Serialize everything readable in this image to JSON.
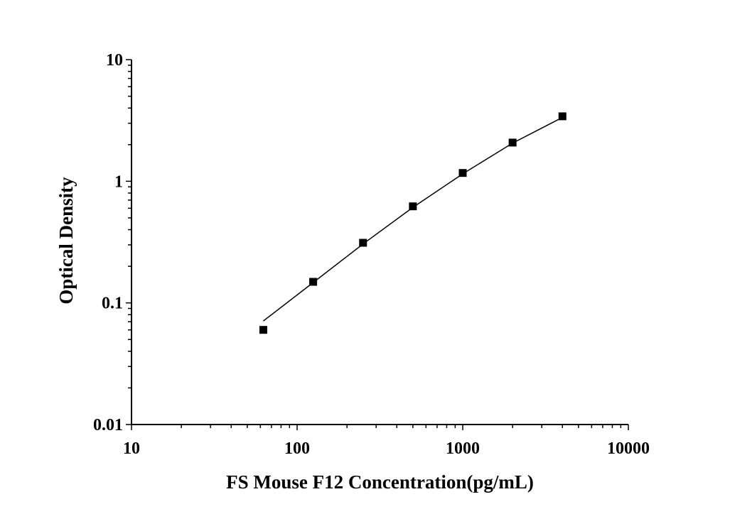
{
  "chart_data": {
    "type": "scatter",
    "title": "",
    "xlabel": "FS Mouse F12 Concentration(pg/mL)",
    "ylabel": "Optical Density",
    "xscale": "log",
    "yscale": "log",
    "xlim": [
      10,
      10000
    ],
    "ylim": [
      0.01,
      10
    ],
    "x_ticks": [
      "10",
      "100",
      "1000",
      "10000"
    ],
    "y_ticks": [
      "0.01",
      "0.1",
      "1",
      "10"
    ],
    "grid": false,
    "legend": "none",
    "series": [
      {
        "marker": "square",
        "x": [
          62.5,
          125,
          250,
          500,
          1000,
          2000,
          4000
        ],
        "y": [
          0.06,
          0.149,
          0.312,
          0.622,
          1.17,
          2.08,
          3.42
        ]
      }
    ],
    "fit_curve": {
      "x": [
        62.5,
        125,
        250,
        500,
        1000,
        2000,
        4000
      ],
      "y": [
        0.071,
        0.147,
        0.305,
        0.61,
        1.15,
        2.06,
        3.35
      ]
    }
  }
}
